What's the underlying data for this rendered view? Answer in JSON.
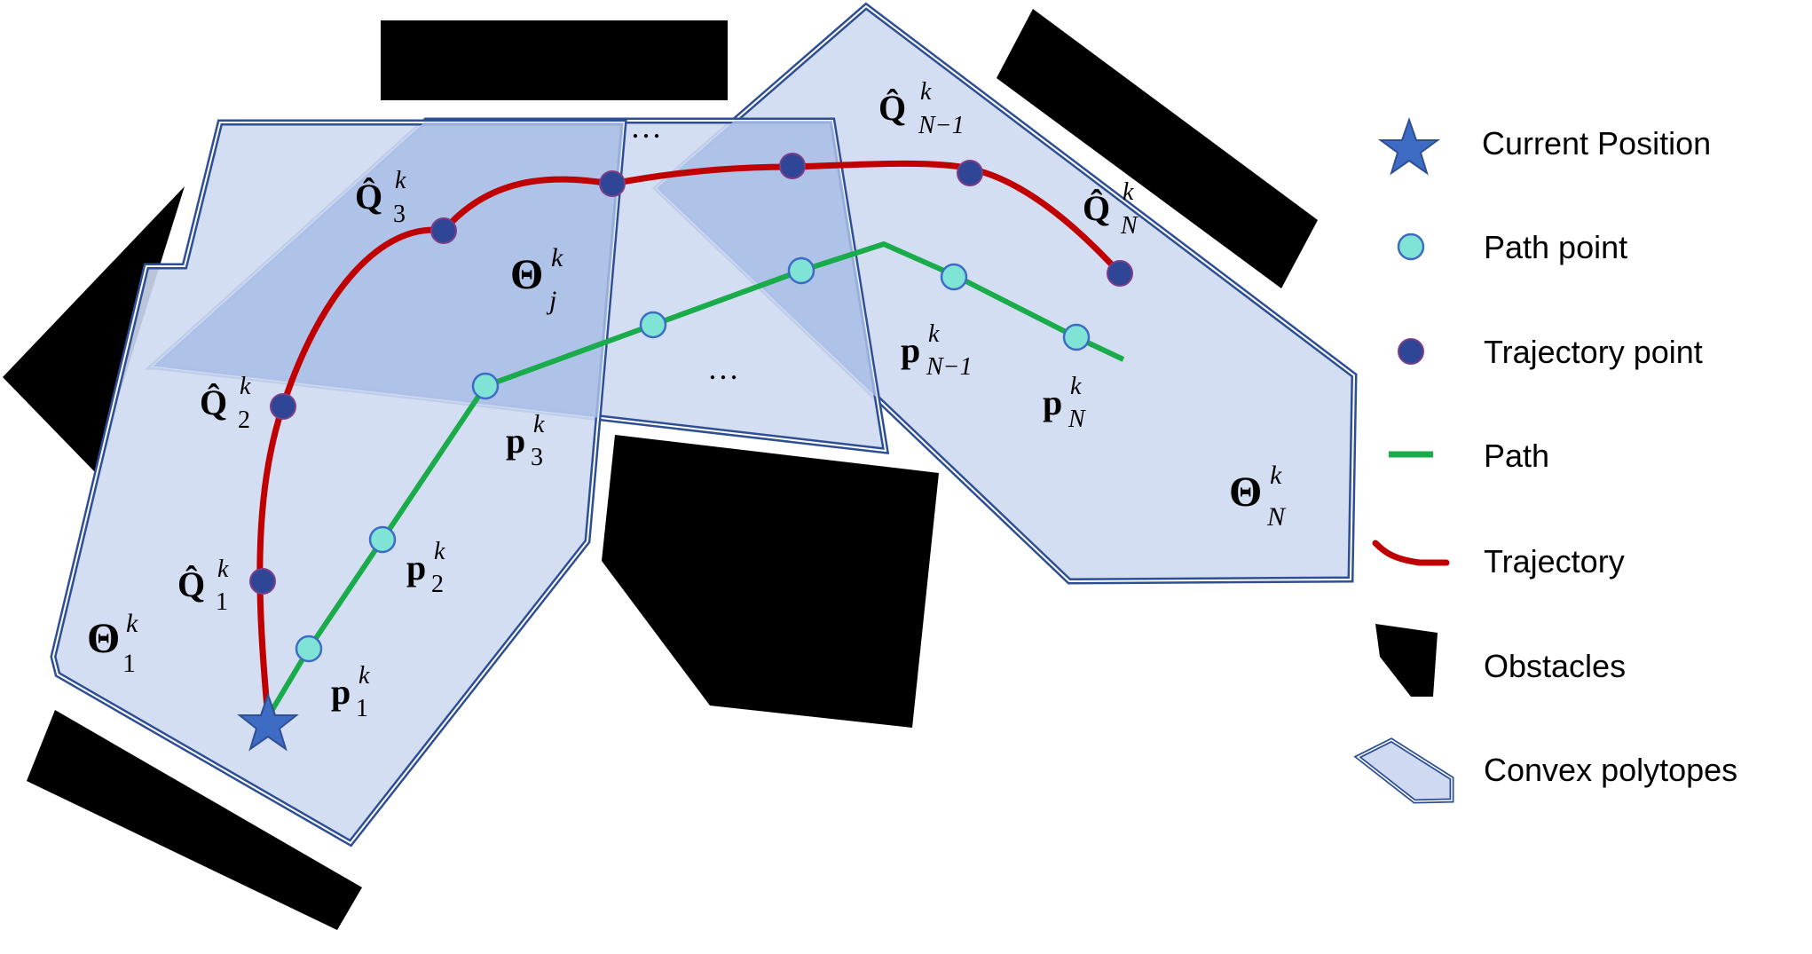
{
  "colors": {
    "polytope_fill": "#cfdaf2",
    "polytope_overlap_fill": "#a9bde6",
    "polytope_stroke": "#2f4f94",
    "obstacle": "#000000",
    "trajectory": "#c00000",
    "path": "#1aab4a",
    "path_point": "#7fe3d6",
    "trajectory_point": "#2f4596",
    "star": "#3e6cc4"
  },
  "labels": {
    "theta_symbol": "Θ",
    "theta_1_sub": "1",
    "theta_j_sub": "j",
    "theta_N_sub": "N",
    "sup_k": "k",
    "Q_symbol": "Q̂",
    "p_symbol": "p",
    "sub_1": "1",
    "sub_2": "2",
    "sub_3": "3",
    "sub_N": "N",
    "sub_N_minus_1": "N−1",
    "ellipsis": "…"
  },
  "legend": {
    "items": [
      {
        "label": "Current Position",
        "icon": "star-icon"
      },
      {
        "label": "Path point",
        "icon": "path-point-icon"
      },
      {
        "label": "Trajectory point",
        "icon": "trajectory-point-icon"
      },
      {
        "label": "Path",
        "icon": "path-line-icon"
      },
      {
        "label": "Trajectory",
        "icon": "trajectory-curve-icon"
      },
      {
        "label": "Obstacles",
        "icon": "obstacle-icon"
      },
      {
        "label": "Convex polytopes",
        "icon": "polytope-icon"
      }
    ]
  }
}
